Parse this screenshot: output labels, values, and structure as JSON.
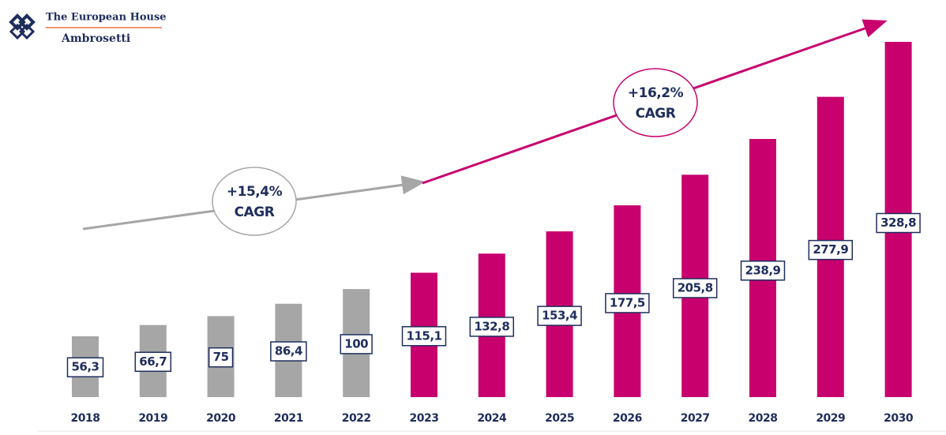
{
  "header": {
    "brand": "The European House",
    "subbrand": "Ambrosetti"
  },
  "chart_data": {
    "type": "bar",
    "categories": [
      "2018",
      "2019",
      "2020",
      "2021",
      "2022",
      "2023",
      "2024",
      "2025",
      "2026",
      "2027",
      "2028",
      "2029",
      "2030"
    ],
    "values": [
      56.3,
      66.7,
      75,
      86.4,
      100,
      115.1,
      132.8,
      153.4,
      177.5,
      205.8,
      238.9,
      277.9,
      328.8
    ],
    "value_labels": [
      "56,3",
      "66,7",
      "75",
      "86,4",
      "100",
      "115,1",
      "132,8",
      "153,4",
      "177,5",
      "205,8",
      "238,9",
      "277,9",
      "328,8"
    ],
    "colors": [
      "#a6a6a6",
      "#a6a6a6",
      "#a6a6a6",
      "#a6a6a6",
      "#a6a6a6",
      "#c8006e",
      "#c8006e",
      "#c8006e",
      "#c8006e",
      "#c8006e",
      "#c8006e",
      "#c8006e",
      "#c8006e"
    ],
    "annotations": [
      {
        "lines": [
          "+15,4%",
          "CAGR"
        ],
        "color": "#a6a6a6"
      },
      {
        "lines": [
          "+16,2%",
          "CAGR"
        ],
        "color": "#c8006e"
      }
    ]
  }
}
